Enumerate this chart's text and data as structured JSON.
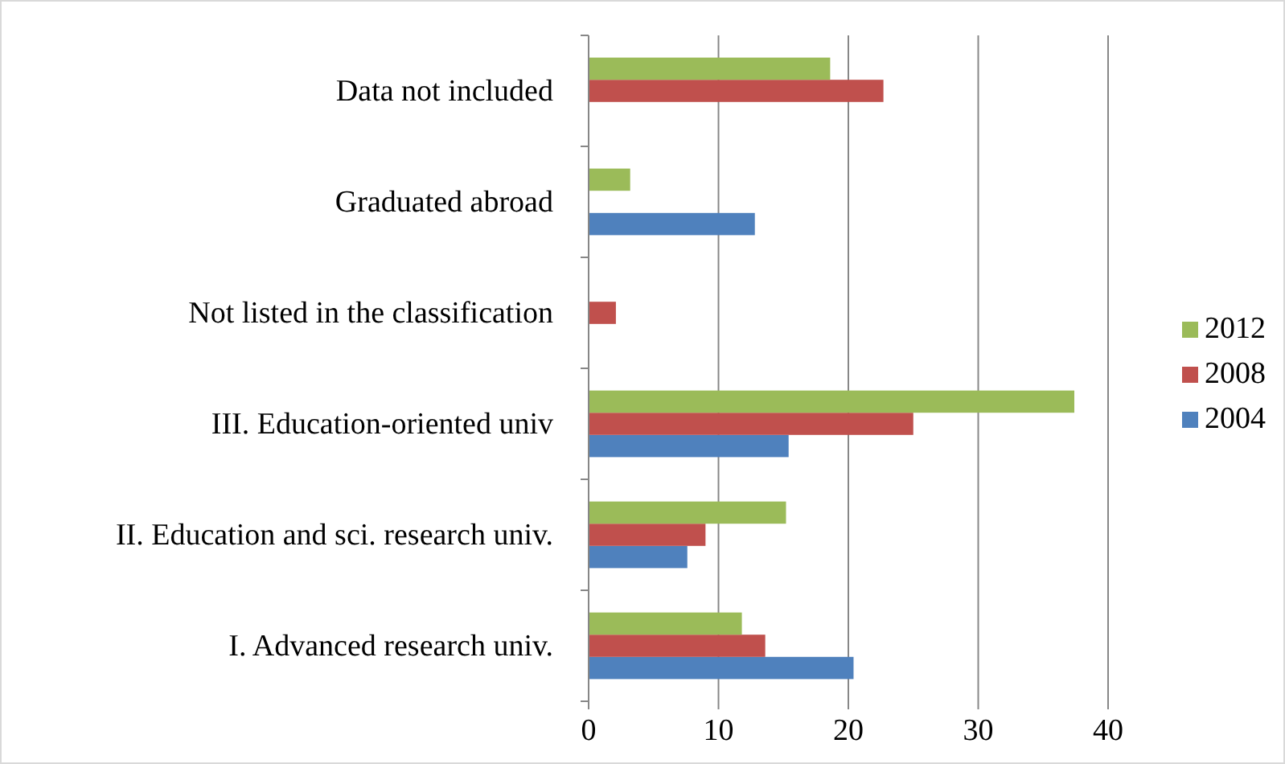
{
  "chart_data": {
    "type": "bar",
    "orientation": "horizontal",
    "categories": [
      "Data not included",
      "Graduated abroad",
      "Not listed in the classification",
      "III. Education-oriented univ",
      "II. Education and sci. research univ.",
      "I. Advanced research univ."
    ],
    "series": [
      {
        "name": "2004",
        "color": "#4f81bd",
        "values": [
          null,
          12.8,
          null,
          15.4,
          7.6,
          20.4
        ]
      },
      {
        "name": "2008",
        "color": "#c0504d",
        "values": [
          22.7,
          null,
          2.1,
          25.0,
          9.0,
          13.6
        ]
      },
      {
        "name": "2012",
        "color": "#9bbb59",
        "values": [
          18.6,
          3.2,
          null,
          37.4,
          15.2,
          11.8
        ]
      }
    ],
    "xlim": [
      0,
      40
    ],
    "xticks": [
      0,
      10,
      20,
      30,
      40
    ],
    "grid": "x",
    "legend": "right"
  }
}
